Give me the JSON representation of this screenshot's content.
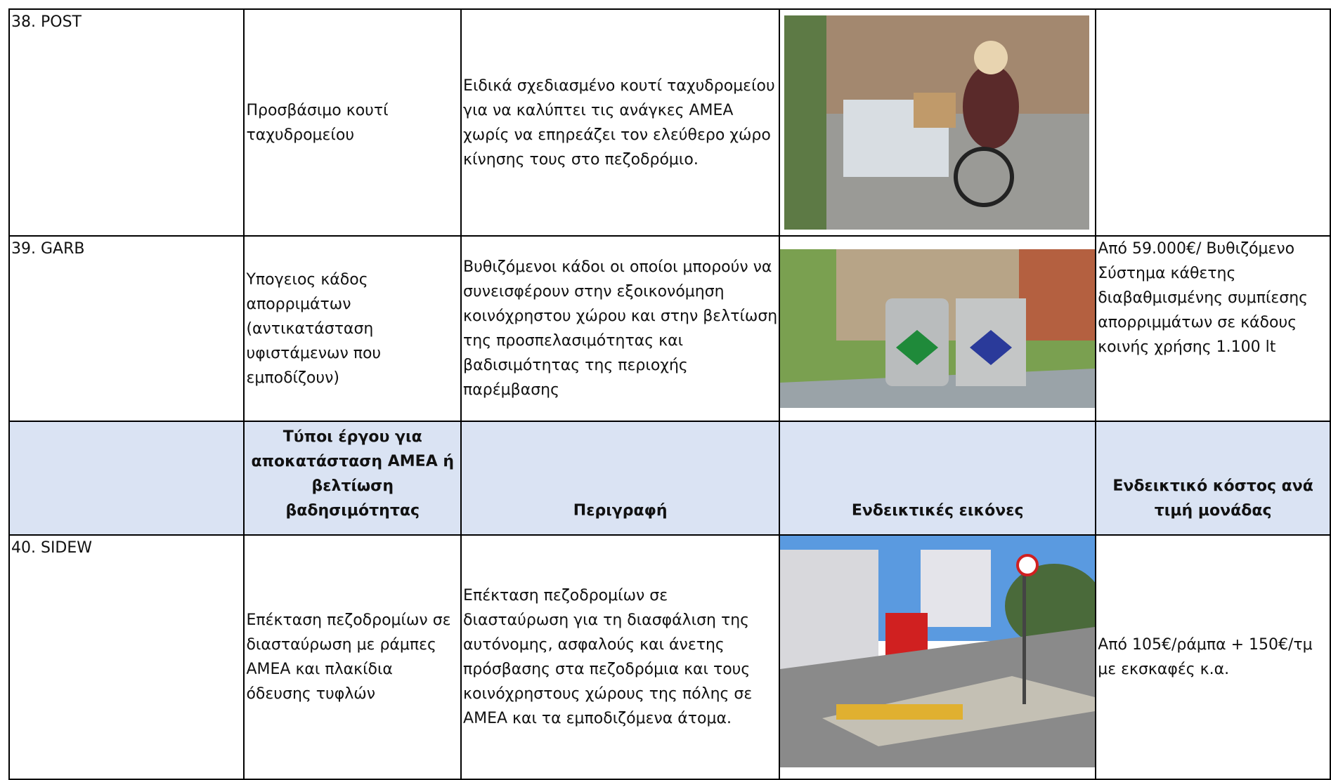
{
  "table": {
    "rows": [
      {
        "code": "38. POST",
        "type": "Προσβάσιμο κουτί ταχυδρομείου",
        "description": "Ειδικά σχεδιασμένο κουτί ταχυδρομείου για να καλύπτει τις ανάγκες ΑΜΕΑ χωρίς να επηρεάζει τον ελεύθερο χώρο κίνησης τους στο πεζοδρόμιο."
      },
      {
        "code": "39. GARB",
        "type": "Υπογειος κάδος απορριμάτων (αντικατάσταση υφιστάμενων που εμποδίζουν)",
        "description": "Βυθιζόμενοι κάδοι οι οποίοι μπορούν να συνεισφέρουν στην εξοικονόμηση κοινόχρηστου χώρου και στην βελτίωση της προσπελασιμότητας και βαδισιμότητας της περιοχής παρέμβασης",
        "cost": "Από 59.000€/ Βυθιζόμενο Σύστημα κάθετης διαβαθμισμένης συμπίεσης απορριμμάτων σε κάδους κοινής χρήσης 1.100 lt"
      },
      {
        "code": "40. SIDEW",
        "type": "Επέκταση πεζοδρομίων σε διασταύρωση με ράμπες ΑΜΕΑ και πλακίδια όδευσης τυφλών",
        "description": "Επέκταση πεζοδρομίων σε διασταύρωση  για τη διασφάλιση της αυτόνομης, ασφαλούς και άνετης πρόσβασης στα πεζοδρόμια και τους κοινόχρηστους χώρους της πόλης σε ΑΜΕΑ και τα εμποδιζόμενα άτομα.",
        "cost": "Από 105€/ράμπα + 150€/τμ με εκσκαφές κ.α."
      }
    ],
    "header": {
      "type": "Τύποι έργου για αποκατάσταση ΑΜΕΑ ή βελτίωση βαδησιμότητας",
      "description": "Περιγραφή",
      "images": "Ενδεικτικές εικόνες",
      "cost": "Ενδεικτικό κόστος ανά τιμή μονάδας"
    }
  }
}
